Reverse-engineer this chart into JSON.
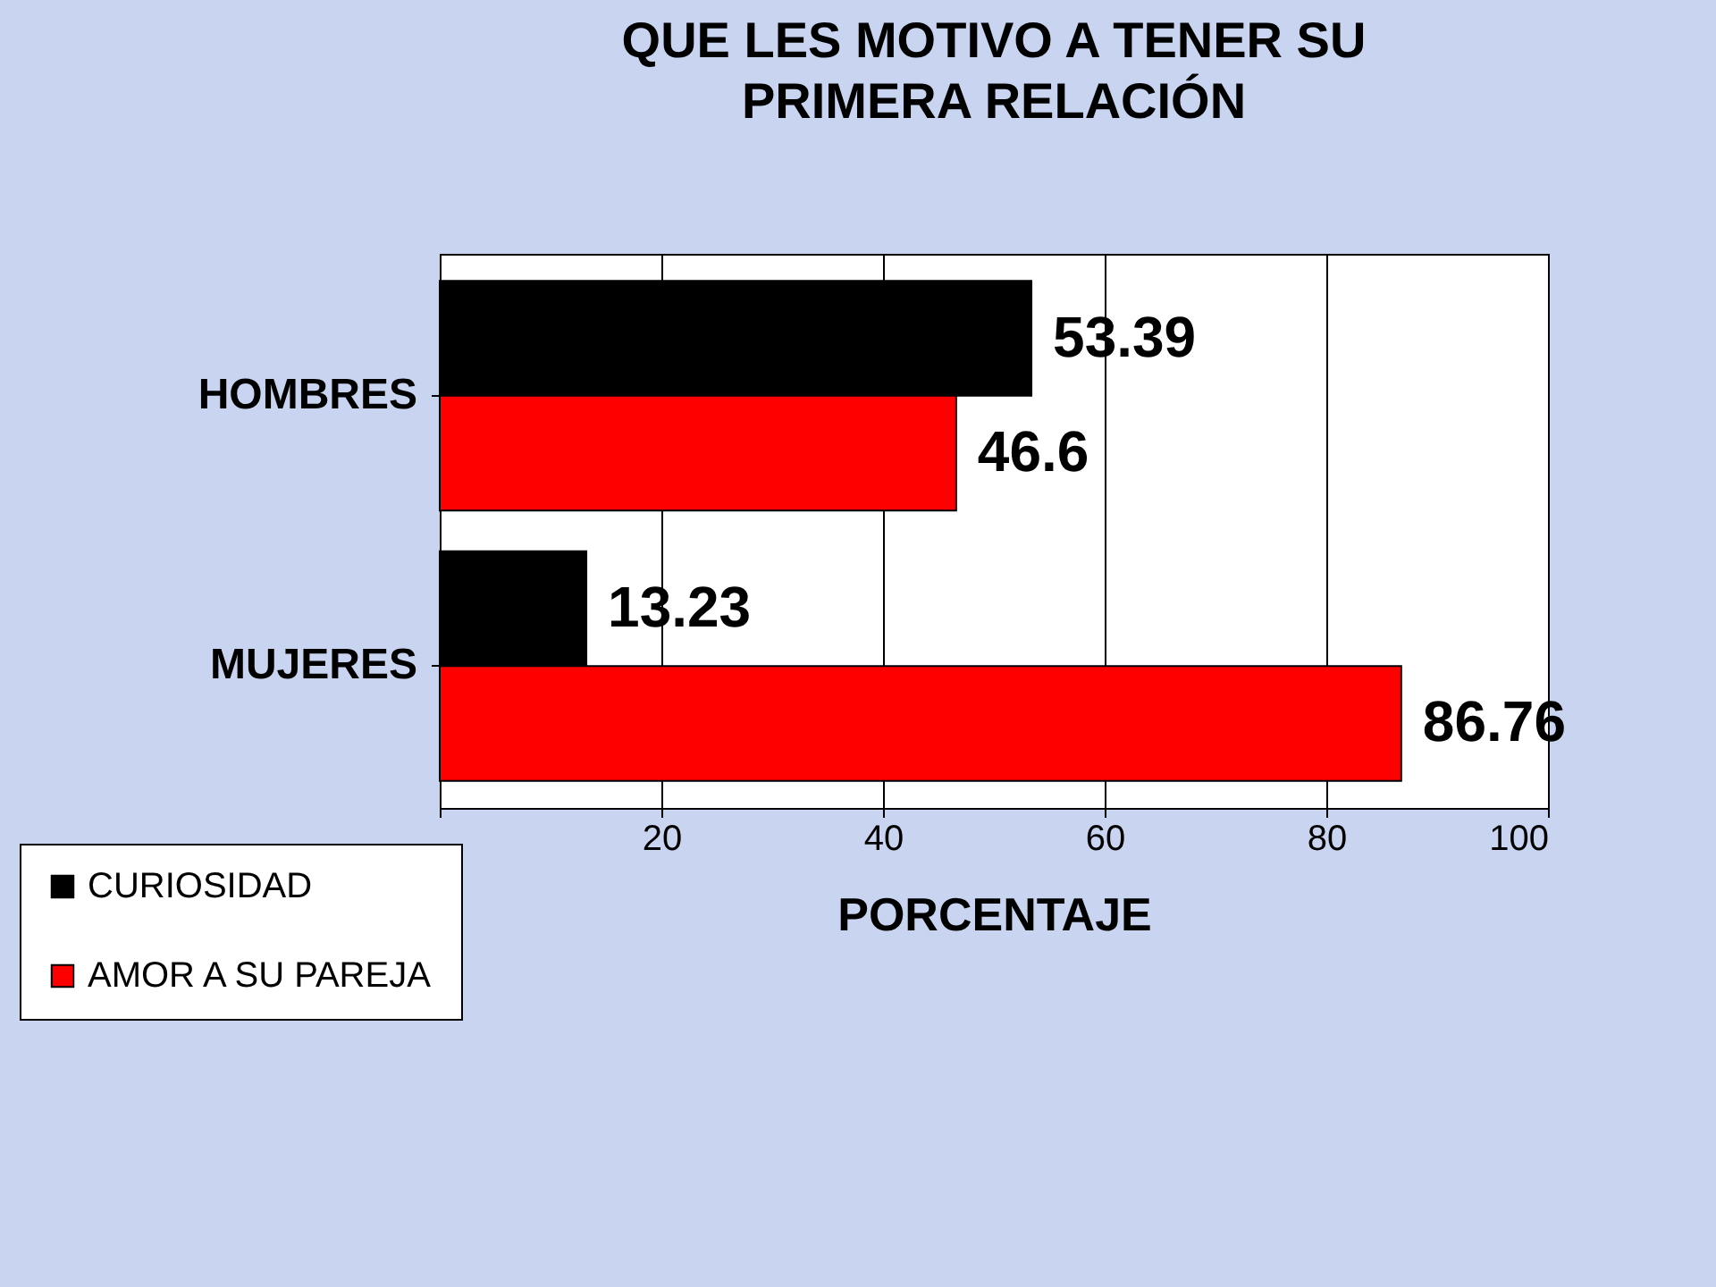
{
  "chart_data": {
    "type": "bar",
    "orientation": "horizontal",
    "title": "QUE LES MOTIVO A TENER SU PRIMERA RELACIÓN",
    "xlabel": "PORCENTAJE",
    "categories": [
      "HOMBRES",
      "MUJERES"
    ],
    "series": [
      {
        "name": "CURIOSIDAD",
        "color": "#000000",
        "values": [
          53.39,
          13.23
        ]
      },
      {
        "name": "AMOR A SU PAREJA",
        "color": "#ff0000",
        "values": [
          46.6,
          86.76
        ]
      }
    ],
    "xlim": [
      0,
      100
    ],
    "xticks": [
      {
        "value": 0,
        "label": null
      },
      20,
      40,
      60,
      80,
      100
    ],
    "grid": "x",
    "legend": "bottom left",
    "data_labels": true
  }
}
